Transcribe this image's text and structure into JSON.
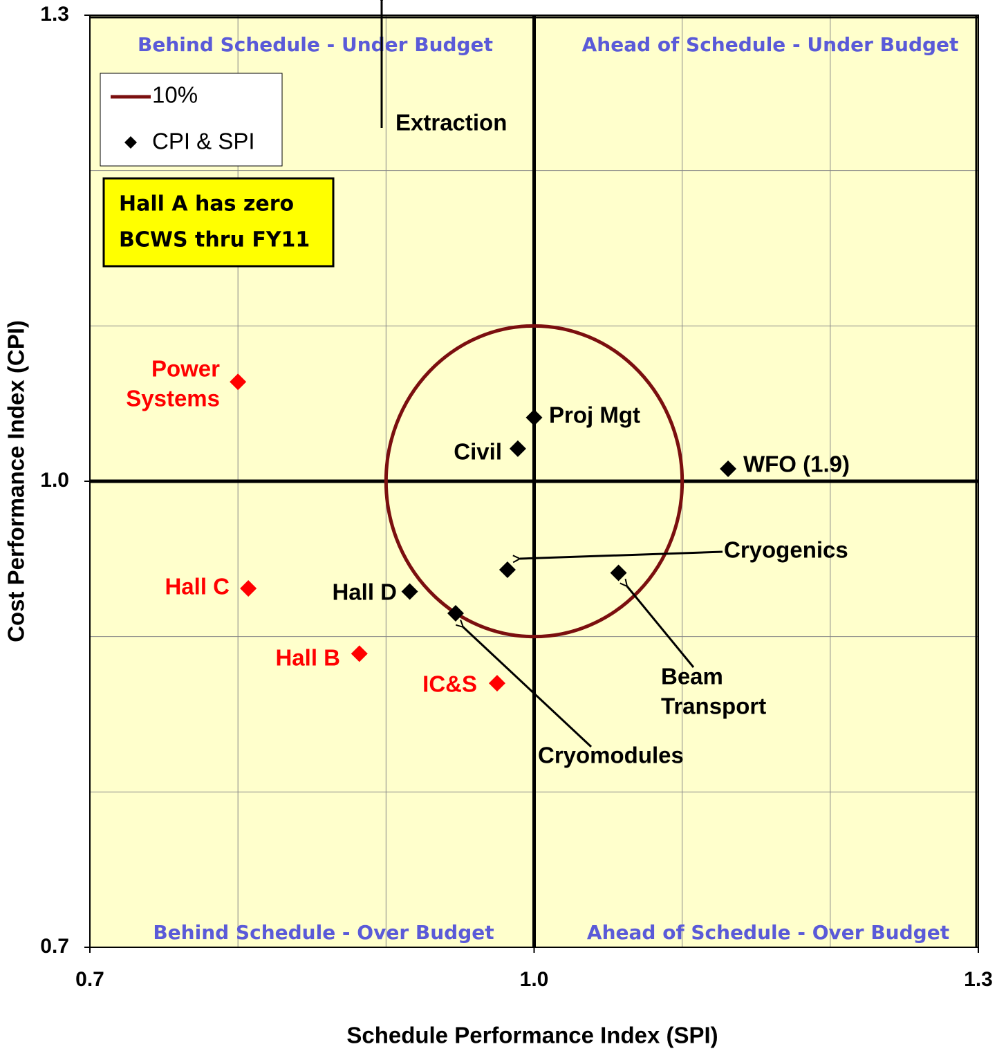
{
  "chart_data": {
    "type": "scatter",
    "xlabel": "Schedule Performance Index (SPI)",
    "ylabel": "Cost Performance Index (CPI)",
    "xlim": [
      0.7,
      1.3
    ],
    "ylim": [
      0.7,
      1.3
    ],
    "xticks": [
      0.7,
      {
        "value": 1,
        "label": "1.0"
      },
      1.3
    ],
    "yticks": [
      0.7,
      {
        "value": 1,
        "label": "1.0"
      },
      1.3
    ],
    "xgrid": [
      0.8,
      0.9,
      1.1,
      1.2
    ],
    "ygrid": [
      0.8,
      0.9,
      1.1,
      1.2
    ],
    "background": "#ffffcc",
    "legend": "top-left",
    "circle": {
      "name": "10%",
      "color": "#7b0f0f",
      "center": [
        1,
        1
      ],
      "radius": 0.1
    },
    "series": [
      {
        "name": "CPI & SPI",
        "color": "#000000",
        "points": [
          {
            "label": [
              "Power",
              "Systems"
            ],
            "x": 0.8,
            "y": 1.064,
            "color": "#ff0000"
          },
          {
            "label": [
              "Hall C"
            ],
            "x": 0.807,
            "y": 0.931,
            "color": "#ff0000"
          },
          {
            "label": [
              "Hall B"
            ],
            "x": 0.882,
            "y": 0.889,
            "color": "#ff0000"
          },
          {
            "label": [
              "IC&S"
            ],
            "x": 0.975,
            "y": 0.87,
            "color": "#ff0000"
          },
          {
            "label": [
              "Hall D"
            ],
            "x": 0.916,
            "y": 0.929,
            "color": "#000000"
          },
          {
            "label": [
              "Cryomodules"
            ],
            "x": 0.947,
            "y": 0.915,
            "color": "#000000"
          },
          {
            "label": [
              "Cryogenics"
            ],
            "x": 0.982,
            "y": 0.943,
            "color": "#000000"
          },
          {
            "label": [
              "Beam",
              "Transport"
            ],
            "x": 1.057,
            "y": 0.941,
            "color": "#000000"
          },
          {
            "label": [
              "Civil"
            ],
            "x": 0.989,
            "y": 1.021,
            "color": "#000000"
          },
          {
            "label": [
              "Proj Mgt"
            ],
            "x": 1.0,
            "y": 1.041,
            "color": "#000000"
          },
          {
            "label": [
              "WFO (1.9)"
            ],
            "x": 1.131,
            "y": 1.008,
            "color": "#000000"
          }
        ]
      }
    ],
    "extraction": "Extraction",
    "quadrants": [
      "Behind Schedule - Under Budget",
      "Ahead of Schedule - Under Budget",
      "Behind Schedule - Over Budget",
      "Ahead of Schedule - Over Budget"
    ],
    "note": [
      "Hall A has zero",
      "BCWS thru FY11"
    ]
  }
}
